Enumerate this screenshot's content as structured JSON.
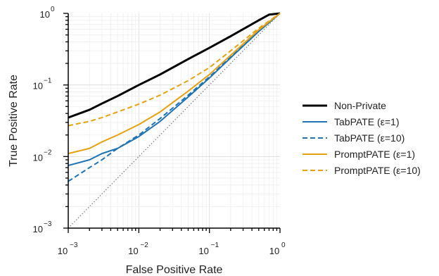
{
  "chart_data": {
    "type": "line",
    "title": "",
    "xlabel": "False Positive Rate",
    "ylabel": "True Positive Rate",
    "xscale": "log",
    "yscale": "log",
    "xlim": [
      0.001,
      1
    ],
    "ylim": [
      0.001,
      1
    ],
    "x_ticks": [
      {
        "base": "10",
        "exp": "−3",
        "value": 0.001
      },
      {
        "base": "10",
        "exp": "−2",
        "value": 0.01
      },
      {
        "base": "10",
        "exp": "−1",
        "value": 0.1
      },
      {
        "base": "10",
        "exp": "0",
        "value": 1
      }
    ],
    "y_ticks": [
      {
        "base": "10",
        "exp": "−3",
        "value": 0.001
      },
      {
        "base": "10",
        "exp": "−2",
        "value": 0.01
      },
      {
        "base": "10",
        "exp": "−1",
        "value": 0.1
      },
      {
        "base": "10",
        "exp": "0",
        "value": 1
      }
    ],
    "grid": true,
    "legend_position": "right",
    "diagonal": {
      "color": "#777777",
      "style": "dotted"
    },
    "series": [
      {
        "name": "Non-Private",
        "color": "#000000",
        "dash": "solid",
        "width": 3,
        "x": [
          0.001,
          0.002,
          0.003,
          0.005,
          0.01,
          0.02,
          0.05,
          0.1,
          0.2,
          0.5,
          0.7,
          1.0
        ],
        "y": [
          0.035,
          0.045,
          0.055,
          0.07,
          0.1,
          0.14,
          0.23,
          0.33,
          0.48,
          0.8,
          0.96,
          1.0
        ]
      },
      {
        "name": "TabPATE (ε=1)",
        "color": "#1f73b4",
        "dash": "solid",
        "width": 2,
        "x": [
          0.001,
          0.002,
          0.003,
          0.005,
          0.01,
          0.02,
          0.05,
          0.1,
          0.2,
          0.5,
          1.0
        ],
        "y": [
          0.0075,
          0.009,
          0.011,
          0.013,
          0.019,
          0.031,
          0.068,
          0.125,
          0.24,
          0.56,
          1.0
        ]
      },
      {
        "name": "TabPATE (ε=10)",
        "color": "#1f73b4",
        "dash": "dashed",
        "width": 2,
        "x": [
          0.001,
          0.002,
          0.003,
          0.005,
          0.01,
          0.02,
          0.05,
          0.1,
          0.2,
          0.5,
          1.0
        ],
        "y": [
          0.0045,
          0.007,
          0.009,
          0.013,
          0.02,
          0.034,
          0.072,
          0.13,
          0.245,
          0.57,
          1.0
        ]
      },
      {
        "name": "PromptPATE (ε=1)",
        "color": "#e8a10e",
        "dash": "solid",
        "width": 2,
        "x": [
          0.001,
          0.002,
          0.003,
          0.005,
          0.01,
          0.02,
          0.05,
          0.1,
          0.2,
          0.5,
          1.0
        ],
        "y": [
          0.011,
          0.013,
          0.016,
          0.02,
          0.028,
          0.042,
          0.082,
          0.14,
          0.26,
          0.59,
          1.0
        ]
      },
      {
        "name": "PromptPATE (ε=10)",
        "color": "#e8a10e",
        "dash": "dashed",
        "width": 2,
        "x": [
          0.001,
          0.002,
          0.003,
          0.005,
          0.01,
          0.02,
          0.05,
          0.1,
          0.2,
          0.5,
          1.0
        ],
        "y": [
          0.027,
          0.031,
          0.035,
          0.042,
          0.054,
          0.072,
          0.115,
          0.175,
          0.3,
          0.62,
          1.0
        ]
      }
    ]
  }
}
